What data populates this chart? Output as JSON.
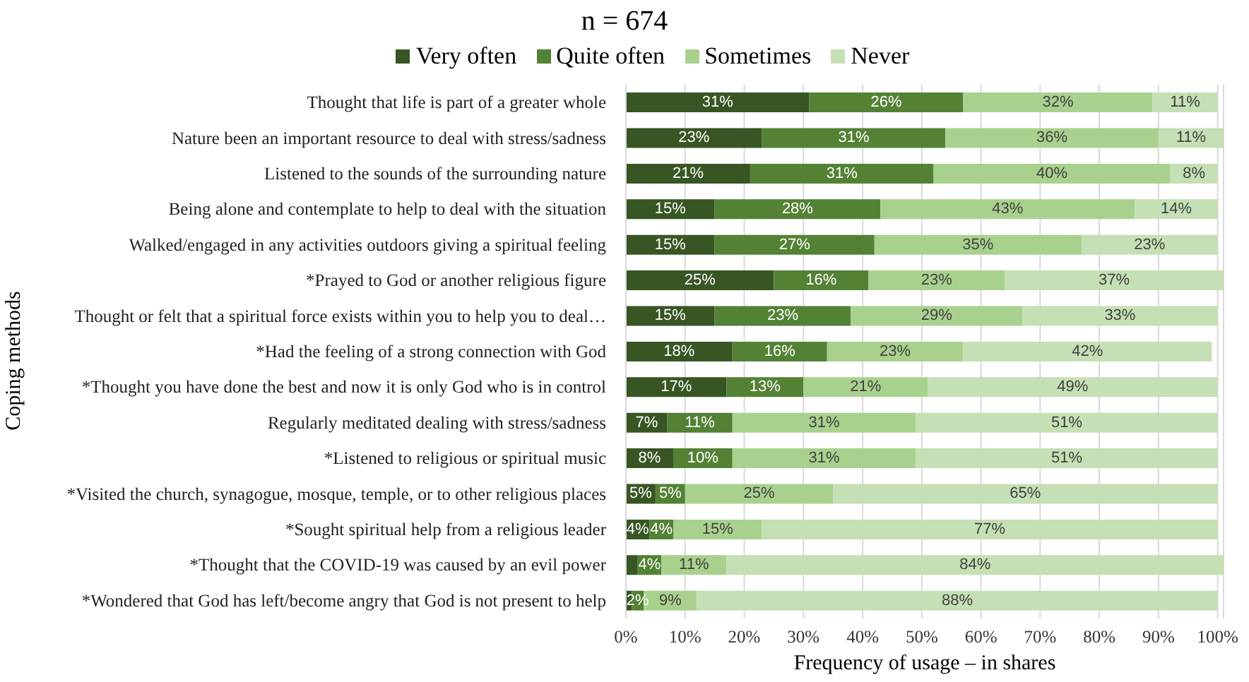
{
  "chart_data": {
    "type": "bar",
    "orientation": "horizontal",
    "stacked": true,
    "title": "n = 674",
    "xlabel": "Frequency of usage – in shares",
    "ylabel": "Coping methods",
    "categories": [
      "Thought that life is part of a greater whole",
      "Nature been an important resource to deal with stress/sadness",
      "Listened to the sounds of the surrounding nature",
      "Being alone and contemplate to help to deal with the situation",
      "Walked/engaged in any activities outdoors giving a spiritual feeling",
      "*Prayed to God or another religious figure",
      "Thought or felt that a spiritual force exists within you to help you to deal…",
      "*Had the feeling of a strong connection with God",
      "*Thought you have done the best and now it is only God who is in control",
      "Regularly meditated dealing with stress/sadness",
      "*Listened to religious or spiritual music",
      "*Visited the church, synagogue, mosque, temple, or to other religious places",
      "*Sought spiritual help from a religious leader",
      "*Thought that the COVID-19 was caused by an evil power",
      "*Wondered that God has left/become angry that God is not present to help"
    ],
    "series": [
      {
        "name": "Very often",
        "color": "#375623",
        "values": [
          31,
          23,
          21,
          15,
          15,
          25,
          15,
          18,
          17,
          7,
          8,
          5,
          4,
          2,
          1
        ],
        "value_labels": [
          "31%",
          "23%",
          "21%",
          "15%",
          "15%",
          "25%",
          "15%",
          "18%",
          "17%",
          "7%",
          "8%",
          "5%",
          "4%",
          null,
          null
        ]
      },
      {
        "name": "Quite often",
        "color": "#548235",
        "values": [
          26,
          31,
          31,
          28,
          27,
          16,
          23,
          16,
          13,
          11,
          10,
          5,
          4,
          4,
          2
        ],
        "value_labels": [
          "26%",
          "31%",
          "31%",
          "28%",
          "27%",
          "16%",
          "23%",
          "16%",
          "13%",
          "11%",
          "10%",
          "5%",
          "4%",
          "4%",
          "2%"
        ]
      },
      {
        "name": "Sometimes",
        "color": "#a9d18e",
        "values": [
          32,
          36,
          40,
          43,
          35,
          23,
          29,
          23,
          21,
          31,
          31,
          25,
          15,
          11,
          9
        ],
        "value_labels": [
          "32%",
          "36%",
          "40%",
          "43%",
          "35%",
          "23%",
          "29%",
          "23%",
          "21%",
          "31%",
          "31%",
          "25%",
          "15%",
          "11%",
          "9%"
        ]
      },
      {
        "name": "Never",
        "color": "#c5e0b4",
        "values": [
          11,
          11,
          8,
          14,
          23,
          37,
          33,
          42,
          49,
          51,
          51,
          65,
          77,
          84,
          88
        ],
        "value_labels": [
          "11%",
          "11%",
          "8%",
          "14%",
          "23%",
          "37%",
          "33%",
          "42%",
          "49%",
          "51%",
          "51%",
          "65%",
          "77%",
          "84%",
          "88%"
        ]
      }
    ],
    "xlim": [
      0,
      101
    ],
    "xticks": [
      {
        "value": 0,
        "label": "0%"
      },
      {
        "value": 10,
        "label": "10%"
      },
      {
        "value": 20,
        "label": "20%"
      },
      {
        "value": 30,
        "label": "30%"
      },
      {
        "value": 40,
        "label": "40%"
      },
      {
        "value": 50,
        "label": "50%"
      },
      {
        "value": 60,
        "label": "60%"
      },
      {
        "value": 70,
        "label": "70%"
      },
      {
        "value": 80,
        "label": "80%"
      },
      {
        "value": 90,
        "label": "90%"
      },
      {
        "value": 100,
        "label": "100%"
      }
    ],
    "grid": "x",
    "legend": "top"
  }
}
